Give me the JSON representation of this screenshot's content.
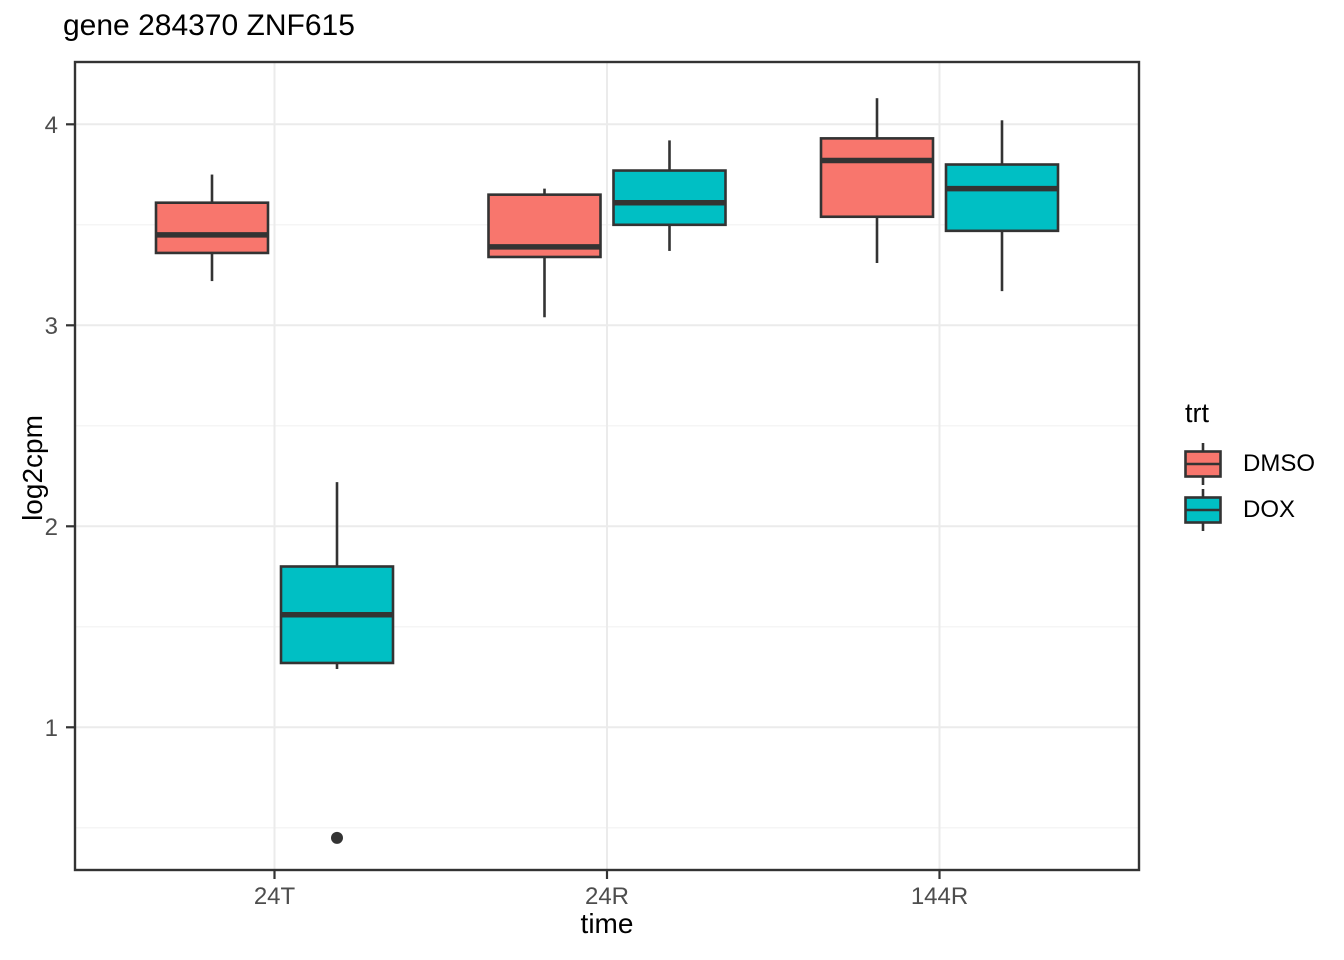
{
  "title": "gene 284370 ZNF615",
  "axes": {
    "x": {
      "label": "time",
      "categories": [
        "24T",
        "24R",
        "144R"
      ]
    },
    "y": {
      "label": "log2cpm",
      "ticks": [
        1,
        2,
        3,
        4
      ],
      "minor_ticks": [
        0.5,
        1.5,
        2.5,
        3.5
      ]
    }
  },
  "legend": {
    "title": "trt",
    "entries": [
      {
        "label": "DMSO",
        "color": "#F8766D"
      },
      {
        "label": "DOX",
        "color": "#00BFC4"
      }
    ]
  },
  "style": {
    "panel_border": "#333333",
    "gridline_major": "#EBEBEB",
    "gridline_minor": "#F2F2F2",
    "tick_color": "#333333",
    "tick_label_color": "#4D4D4D",
    "box_stroke": "#333333",
    "outlier_color": "#333333"
  },
  "chart_data": {
    "type": "boxplot",
    "title": "gene 284370 ZNF615",
    "xlabel": "time",
    "ylabel": "log2cpm",
    "ylim": [
      0.29,
      4.31
    ],
    "grid": "on",
    "legend_position": "right",
    "categories": [
      "24T",
      "24R",
      "144R"
    ],
    "series": [
      {
        "name": "DMSO",
        "color": "#F8766D",
        "boxes": [
          {
            "category": "24T",
            "whisker_low": 3.22,
            "q1": 3.36,
            "median": 3.45,
            "q3": 3.61,
            "whisker_high": 3.75,
            "outliers": []
          },
          {
            "category": "24R",
            "whisker_low": 3.04,
            "q1": 3.34,
            "median": 3.39,
            "q3": 3.65,
            "whisker_high": 3.68,
            "outliers": []
          },
          {
            "category": "144R",
            "whisker_low": 3.31,
            "q1": 3.54,
            "median": 3.82,
            "q3": 3.93,
            "whisker_high": 4.13,
            "outliers": []
          }
        ]
      },
      {
        "name": "DOX",
        "color": "#00BFC4",
        "boxes": [
          {
            "category": "24T",
            "whisker_low": 1.29,
            "q1": 1.32,
            "median": 1.56,
            "q3": 1.8,
            "whisker_high": 2.22,
            "outliers": [
              0.45
            ]
          },
          {
            "category": "24R",
            "whisker_low": 3.37,
            "q1": 3.5,
            "median": 3.61,
            "q3": 3.77,
            "whisker_high": 3.92,
            "outliers": []
          },
          {
            "category": "144R",
            "whisker_low": 3.17,
            "q1": 3.47,
            "median": 3.68,
            "q3": 3.8,
            "whisker_high": 4.02,
            "outliers": []
          }
        ]
      }
    ]
  }
}
